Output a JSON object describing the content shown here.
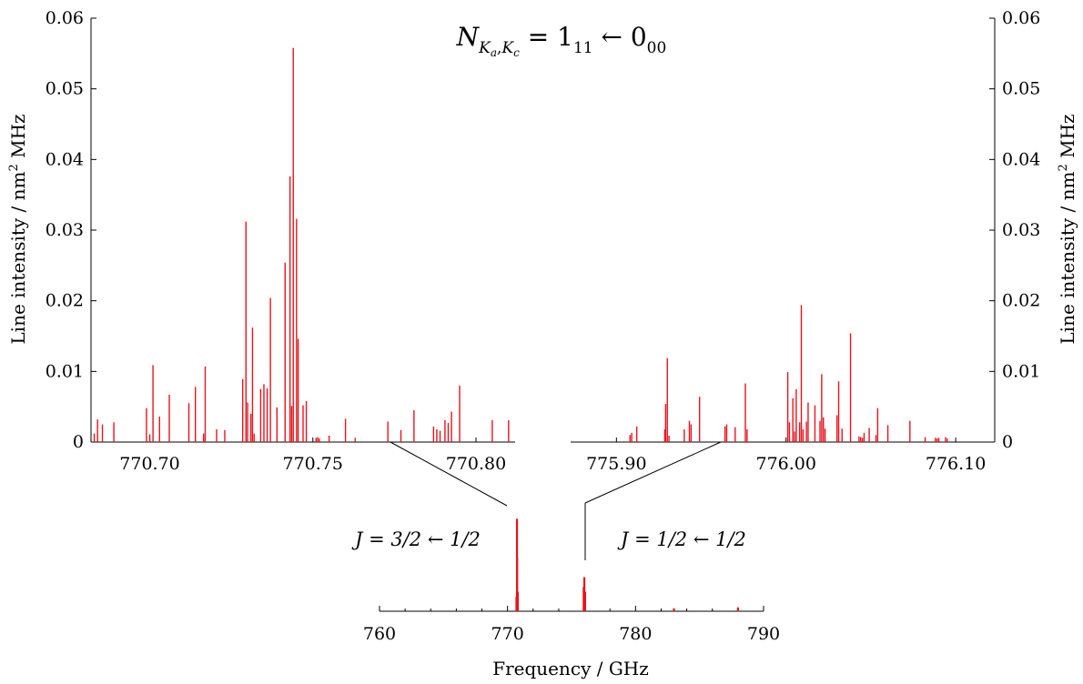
{
  "colors": {
    "line": "#e8141c",
    "axis": "#000000",
    "background": "#ffffff"
  },
  "labels": {
    "title": "N_{Ka,Kc} = 1₁₁ ← 0₀₀",
    "ylabel_left": "Line intensity / nm² MHz",
    "ylabel_right": "Line intensity / nm² MHz",
    "xlabel_bottom": "Frequency / GHz",
    "annot_left": "J = 3/2 ← 1/2",
    "annot_right": "J = 1/2 ← 1/2"
  },
  "chart_data": [
    {
      "type": "bar",
      "id": "left-panel",
      "xlim": [
        770.682,
        770.812
      ],
      "ylim": [
        0,
        0.06
      ],
      "yticks": [
        0,
        0.01,
        0.02,
        0.03,
        0.04,
        0.05,
        0.06
      ],
      "ytick_labels": [
        "0",
        "0.01",
        "0.02",
        "0.03",
        "0.04",
        "0.05",
        "0.06"
      ],
      "xticks": [
        770.7,
        770.75,
        770.8
      ],
      "xtick_labels": [
        "770.70",
        "770.75",
        "770.80"
      ],
      "x": [
        770.683,
        770.684,
        770.6855,
        770.689,
        770.699,
        770.7,
        770.701,
        770.703,
        770.706,
        770.712,
        770.714,
        770.7165,
        770.717,
        770.7205,
        770.723,
        770.7285,
        770.7295,
        770.73,
        770.731,
        770.7315,
        770.732,
        770.734,
        770.735,
        770.736,
        770.737,
        770.739,
        770.7415,
        770.743,
        770.7435,
        770.744,
        770.745,
        770.7455,
        770.747,
        770.748,
        770.751,
        770.7515,
        770.752,
        770.755,
        770.76,
        770.763,
        770.773,
        770.777,
        770.781,
        770.787,
        770.788,
        770.789,
        770.7905,
        770.7915,
        770.7925,
        770.795,
        770.805,
        770.81
      ],
      "values": [
        0.0012,
        0.0032,
        0.0025,
        0.0028,
        0.0048,
        0.0011,
        0.0109,
        0.0036,
        0.0067,
        0.0055,
        0.0078,
        0.0012,
        0.0107,
        0.0018,
        0.0017,
        0.0089,
        0.0312,
        0.0056,
        0.004,
        0.0162,
        0.0012,
        0.0075,
        0.0082,
        0.0076,
        0.0204,
        0.0049,
        0.0254,
        0.0376,
        0.0051,
        0.0558,
        0.0316,
        0.0146,
        0.0052,
        0.0058,
        0.0006,
        0.0007,
        0.0005,
        0.0009,
        0.0033,
        0.0006,
        0.0029,
        0.0017,
        0.0045,
        0.0022,
        0.0018,
        0.0016,
        0.0031,
        0.0027,
        0.0043,
        0.008,
        0.0031,
        0.0031
      ]
    },
    {
      "type": "bar",
      "id": "right-panel",
      "xlim": [
        775.873,
        776.123
      ],
      "ylim": [
        0,
        0.06
      ],
      "yticks": [
        0,
        0.01,
        0.02,
        0.03,
        0.04,
        0.05,
        0.06
      ],
      "ytick_labels": [
        "0",
        "0.01",
        "0.02",
        "0.03",
        "0.04",
        "0.05",
        "0.06"
      ],
      "xticks": [
        775.9,
        776.0,
        776.1
      ],
      "xtick_labels": [
        "775.90",
        "776.00",
        "776.10"
      ],
      "x": [
        775.908,
        775.909,
        775.912,
        775.9285,
        775.929,
        775.93,
        775.931,
        775.94,
        775.943,
        775.944,
        775.949,
        775.964,
        775.965,
        775.97,
        775.976,
        775.977,
        776.001,
        776.002,
        776.004,
        776.005,
        776.006,
        776.008,
        776.009,
        776.01,
        776.012,
        776.013,
        776.017,
        776.02,
        776.021,
        776.022,
        776.023,
        776.03,
        776.031,
        776.033,
        776.038,
        776.043,
        776.044,
        776.045,
        776.046,
        776.049,
        776.053,
        776.054,
        776.06,
        776.073,
        776.082,
        776.088,
        776.089,
        776.09,
        776.094,
        776.095
      ],
      "values": [
        0.001,
        0.0013,
        0.0022,
        0.0018,
        0.0054,
        0.0119,
        0.0009,
        0.0018,
        0.003,
        0.0025,
        0.0064,
        0.0022,
        0.0025,
        0.0021,
        0.0083,
        0.0018,
        0.0099,
        0.0028,
        0.0062,
        0.0015,
        0.0075,
        0.0028,
        0.0194,
        0.0018,
        0.0029,
        0.0056,
        0.0052,
        0.003,
        0.0096,
        0.0035,
        0.0019,
        0.0038,
        0.0086,
        0.0019,
        0.0154,
        0.0008,
        0.0007,
        0.0006,
        0.0013,
        0.002,
        0.001,
        0.0048,
        0.0024,
        0.003,
        0.0007,
        0.0006,
        0.0005,
        0.0006,
        0.0007,
        0.0005
      ]
    },
    {
      "type": "bar",
      "id": "overview-panel",
      "xlabel": "Frequency / GHz",
      "xlim": [
        760,
        790
      ],
      "xticks": [
        760,
        770,
        780,
        790
      ],
      "xtick_labels": [
        "760",
        "770",
        "780",
        "790"
      ],
      "x": [
        770.7,
        770.74,
        770.75,
        770.8,
        775.95,
        776.0,
        776.06,
        783,
        788
      ],
      "values": [
        0.15,
        0.95,
        0.55,
        0.2,
        0.25,
        0.35,
        0.2,
        0.03,
        0.04
      ]
    }
  ]
}
